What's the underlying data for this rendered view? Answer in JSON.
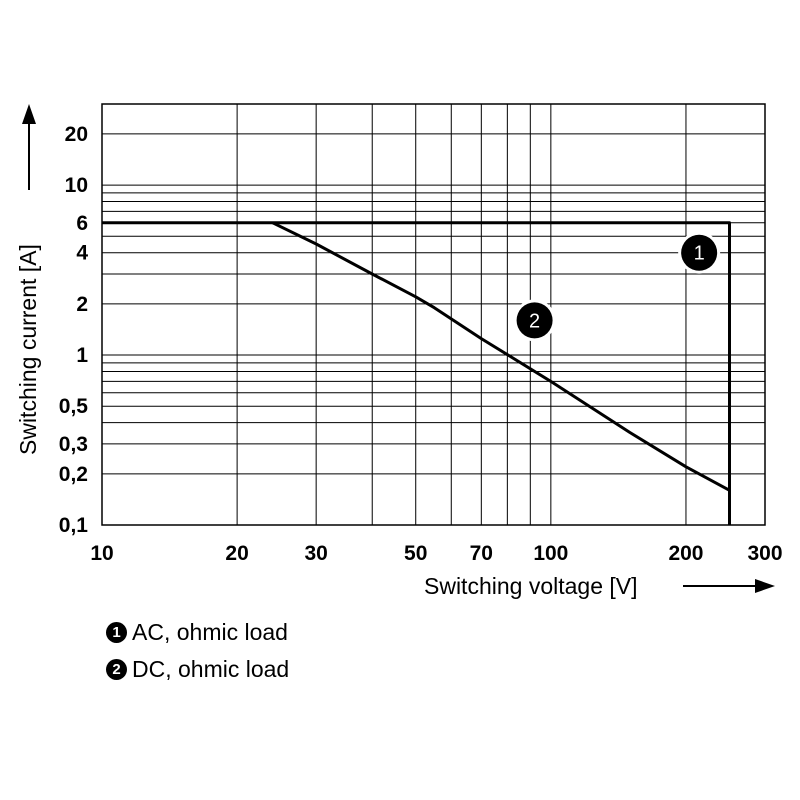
{
  "chart_data": {
    "type": "line",
    "xscale": "log",
    "yscale": "log",
    "xlim": [
      10,
      300
    ],
    "ylim": [
      0.1,
      30
    ],
    "xlabel": "Switching voltage [V]",
    "ylabel": "Switching current [A]",
    "x_ticks": [
      10,
      20,
      30,
      50,
      70,
      100,
      200,
      300
    ],
    "x_tick_labels": [
      "10",
      "20",
      "30",
      "50",
      "70",
      "100",
      "200",
      "300"
    ],
    "y_ticks": [
      0.1,
      0.2,
      0.3,
      0.5,
      1,
      2,
      4,
      6,
      10,
      20
    ],
    "y_tick_labels": [
      "0,1",
      "0,2",
      "0,3",
      "0,5",
      "1",
      "2",
      "4",
      "6",
      "10",
      "20"
    ],
    "x_grid": [
      10,
      20,
      30,
      40,
      50,
      60,
      70,
      80,
      90,
      100,
      200,
      300
    ],
    "y_grid": [
      0.1,
      0.2,
      0.3,
      0.4,
      0.5,
      0.6,
      0.7,
      0.8,
      0.9,
      1,
      2,
      3,
      4,
      5,
      6,
      7,
      8,
      9,
      10,
      20,
      30
    ],
    "series": [
      {
        "name": "AC, ohmic load",
        "marker": "1",
        "label_at": [
          214,
          4.0
        ],
        "x": [
          10,
          250,
          250
        ],
        "y": [
          6,
          6,
          0.1
        ]
      },
      {
        "name": "DC, ohmic load",
        "marker": "2",
        "label_at": [
          92,
          1.6
        ],
        "x": [
          24,
          30,
          40,
          50,
          55,
          70,
          100,
          150,
          200,
          250
        ],
        "y": [
          6,
          4.5,
          3.0,
          2.2,
          1.9,
          1.25,
          0.7,
          0.35,
          0.22,
          0.16
        ]
      }
    ]
  },
  "legend": [
    {
      "marker": "1",
      "label": "AC, ohmic load"
    },
    {
      "marker": "2",
      "label": "DC, ohmic load"
    }
  ]
}
